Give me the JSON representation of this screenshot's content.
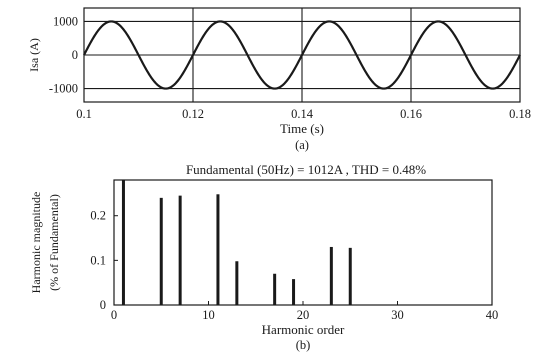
{
  "chart_data": [
    {
      "type": "line",
      "xlabel": "Time (s)",
      "ylabel": "Isa (A)",
      "caption": "(a)",
      "xlim": [
        0.1,
        0.18
      ],
      "ylim": [
        -1400,
        1400
      ],
      "xticks": [
        0.1,
        0.12,
        0.14,
        0.16,
        0.18
      ],
      "xtick_labels": [
        "0.1",
        "0.12",
        "0.14",
        "0.16",
        "0.18"
      ],
      "yticks": [
        1000,
        0,
        -1000
      ],
      "ytick_labels": [
        "1000",
        "0",
        "-1000"
      ],
      "grid": true,
      "series": [
        {
          "amplitude": 1000,
          "frequency_hz": 50,
          "phase_zero_at_s": 0.1
        }
      ]
    },
    {
      "type": "bar",
      "title": "Fundamental (50Hz) = 1012A , THD = 0.48%",
      "xlabel": "Harmonic order",
      "ylabel_line1": "Harmonic magnitude",
      "ylabel_line2": "(% of Fundamental)",
      "caption": "(b)",
      "xlim": [
        0,
        40
      ],
      "ylim": [
        0,
        0.28
      ],
      "xticks": [
        0,
        10,
        20,
        30,
        40
      ],
      "xtick_labels": [
        "0",
        "10",
        "20",
        "30",
        "40"
      ],
      "yticks": [
        0,
        0.1,
        0.2
      ],
      "ytick_labels": [
        "0",
        "0.1",
        "0.2"
      ],
      "grid": false,
      "orders": [
        1,
        5,
        7,
        11,
        13,
        17,
        19,
        23,
        25
      ],
      "values": [
        0.28,
        0.24,
        0.245,
        0.248,
        0.098,
        0.07,
        0.058,
        0.13,
        0.128
      ]
    }
  ]
}
